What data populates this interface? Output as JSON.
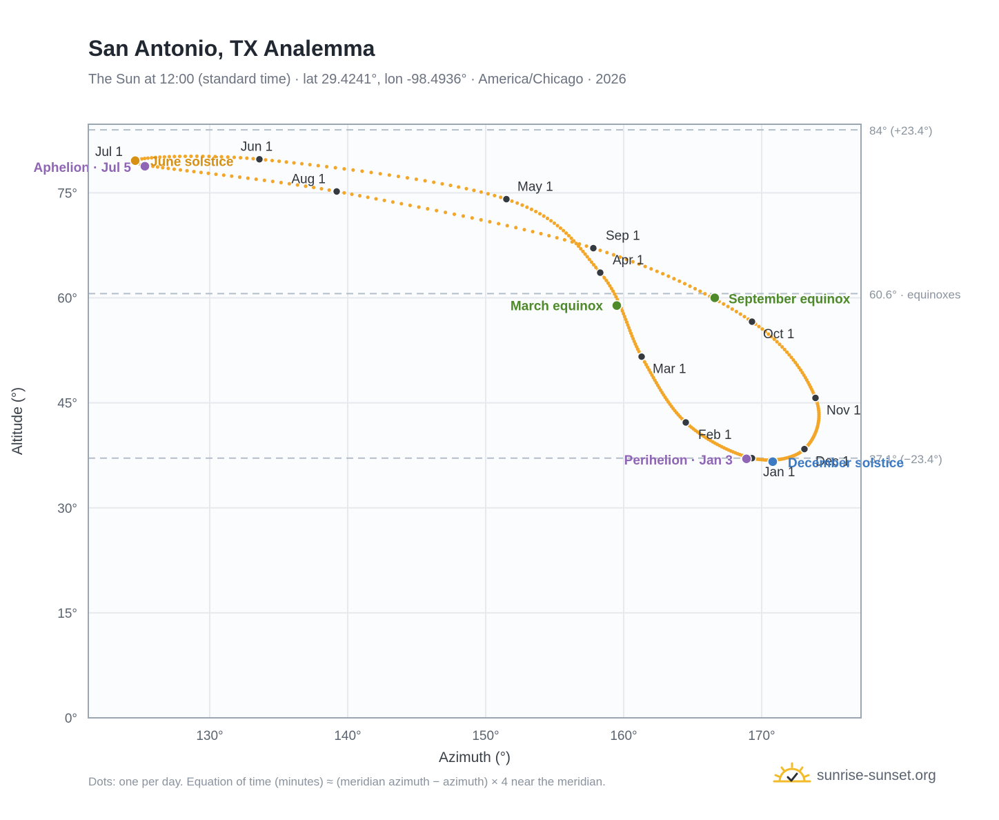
{
  "title": "San Antonio, TX Analemma",
  "subtitle": "The Sun at 12:00 (standard time) · lat 29.4241°, lon -98.4936° · America/Chicago · 2026",
  "footnote": "Dots: one per day. Equation of time (minutes) ≈ (meridian azimuth − azimuth) × 4 near the meridian.",
  "brand": {
    "name": "sunrise-sunset.org",
    "icon": "sun-logo-icon"
  },
  "colors": {
    "path": "#f2a72a",
    "month_marker": "#343a40",
    "equinox": "#4e8a2a",
    "june_solstice": "#d69014",
    "december_solstice": "#3c7ac2",
    "apsis": "#8f65b5",
    "plot_bg": "#fbfcfe",
    "grid": "#e6e9ee",
    "frame": "#9aa6b2",
    "ref_line": "#b3bec8"
  },
  "chart_data": {
    "type": "scatter",
    "xlabel": "Azimuth (°)",
    "ylabel": "Altitude (°)",
    "xlim": [
      121.2,
      177.2
    ],
    "ylim": [
      0,
      84.8
    ],
    "xticks": [
      130,
      140,
      150,
      160,
      170
    ],
    "yticks": [
      0,
      15,
      30,
      45,
      60,
      75
    ],
    "xtick_labels": [
      "130°",
      "140°",
      "150°",
      "160°",
      "170°"
    ],
    "ytick_labels": [
      "0°",
      "15°",
      "30°",
      "45°",
      "60°",
      "75°"
    ],
    "grid": true,
    "reference_lines": [
      {
        "y": 84.0,
        "label": "84° (+23.4°)"
      },
      {
        "y": 60.6,
        "label": "60.6° · equinoxes"
      },
      {
        "y": 37.1,
        "label": "37.1° (−23.4°)"
      }
    ],
    "month_markers": [
      {
        "label": "Jan 1",
        "az": 169.3,
        "alt": 37.1
      },
      {
        "label": "Feb 1",
        "az": 164.5,
        "alt": 42.2
      },
      {
        "label": "Mar 1",
        "az": 161.3,
        "alt": 51.6
      },
      {
        "label": "Apr 1",
        "az": 158.3,
        "alt": 63.6
      },
      {
        "label": "May 1",
        "az": 151.5,
        "alt": 74.1
      },
      {
        "label": "Jun 1",
        "az": 133.6,
        "alt": 79.8
      },
      {
        "label": "Jul 1",
        "az": 124.6,
        "alt": 79.3
      },
      {
        "label": "Aug 1",
        "az": 139.2,
        "alt": 75.2
      },
      {
        "label": "Sep 1",
        "az": 157.8,
        "alt": 67.1
      },
      {
        "label": "Oct 1",
        "az": 169.3,
        "alt": 56.6
      },
      {
        "label": "Nov 1",
        "az": 173.9,
        "alt": 45.7
      },
      {
        "label": "Dec 1",
        "az": 173.1,
        "alt": 38.4
      }
    ],
    "events": [
      {
        "label": "June solstice",
        "az": 124.6,
        "alt": 79.6,
        "kind": "june_solstice"
      },
      {
        "label": "December solstice",
        "az": 170.8,
        "alt": 36.6,
        "kind": "december_solstice"
      },
      {
        "label": "March equinox",
        "az": 159.5,
        "alt": 58.9,
        "kind": "equinox"
      },
      {
        "label": "September equinox",
        "az": 166.6,
        "alt": 60.0,
        "kind": "equinox"
      },
      {
        "label": "Aphelion · Jul 5",
        "az": 125.3,
        "alt": 78.8,
        "kind": "apsis"
      },
      {
        "label": "Perihelion · Jan 3",
        "az": 168.9,
        "alt": 37.0,
        "kind": "apsis"
      }
    ]
  }
}
